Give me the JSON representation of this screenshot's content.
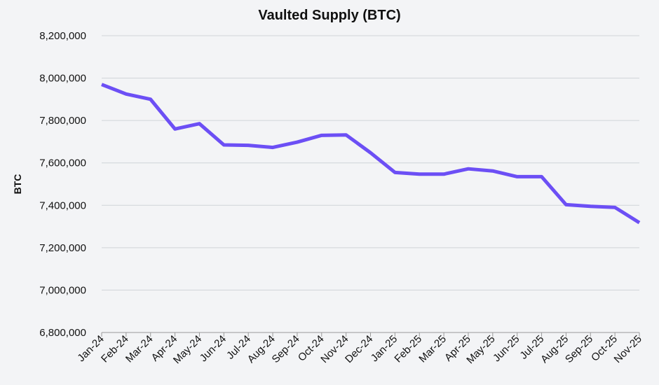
{
  "chart_data": {
    "type": "line",
    "title": "Vaulted Supply (BTC)",
    "y_label": "BTC",
    "categories": [
      "Jan-24",
      "Feb-24",
      "Mar-24",
      "Apr-24",
      "May-24",
      "Jun-24",
      "Jul-24",
      "Aug-24",
      "Sep-24",
      "Oct-24",
      "Nov-24",
      "Dec-24",
      "Jan-25",
      "Feb-25",
      "Mar-25",
      "Apr-25",
      "May-25",
      "Jun-25",
      "Jul-25",
      "Aug-25",
      "Sep-25",
      "Oct-25",
      "Nov-25"
    ],
    "series": [
      {
        "name": "Vaulted Supply",
        "color": "#6c4ff5",
        "values": [
          7970000,
          7925000,
          7900000,
          7760000,
          7785000,
          7685000,
          7683000,
          7673000,
          7698000,
          7730000,
          7732000,
          7648000,
          7555000,
          7547000,
          7547000,
          7572000,
          7562000,
          7535000,
          7535000,
          7403000,
          7395000,
          7390000,
          7318000
        ]
      }
    ],
    "ylim": [
      6800000,
      8200000
    ],
    "yticks": [
      {
        "value": 6800000,
        "label": "6,800,000"
      },
      {
        "value": 7000000,
        "label": "7,000,000"
      },
      {
        "value": 7200000,
        "label": "7,200,000"
      },
      {
        "value": 7400000,
        "label": "7,400,000"
      },
      {
        "value": 7600000,
        "label": "7,600,000"
      },
      {
        "value": 7800000,
        "label": "7,800,000"
      },
      {
        "value": 8000000,
        "label": "8,000,000"
      },
      {
        "value": 8200000,
        "label": "8,200,000"
      }
    ],
    "grid": true
  }
}
